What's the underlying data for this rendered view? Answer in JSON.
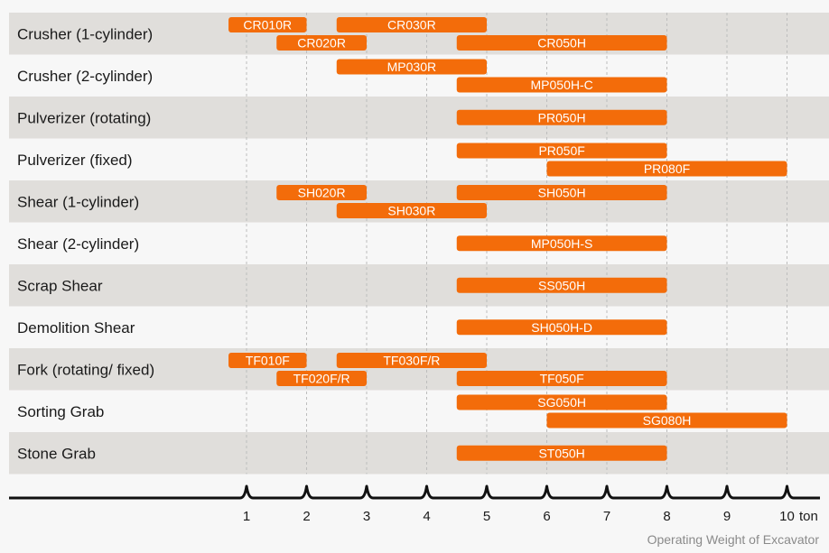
{
  "chart_data": {
    "type": "bar",
    "orientation": "horizontal-range",
    "categories": [
      "Crusher (1-cylinder)",
      "Crusher (2-cylinder)",
      "Pulverizer (rotating)",
      "Pulverizer (fixed)",
      "Shear (1-cylinder)",
      "Shear (2-cylinder)",
      "Scrap Shear",
      "Demolition Shear",
      "Fork (rotating/ fixed)",
      "Sorting Grab",
      "Stone Grab"
    ],
    "series": [
      {
        "category": 0,
        "lane": 0,
        "label": "CR010R",
        "start": 0.7,
        "end": 2.0
      },
      {
        "category": 0,
        "lane": 0,
        "label": "CR030R",
        "start": 2.5,
        "end": 5.0
      },
      {
        "category": 0,
        "lane": 1,
        "label": "CR020R",
        "start": 1.5,
        "end": 3.0
      },
      {
        "category": 0,
        "lane": 1,
        "label": "CR050H",
        "start": 4.5,
        "end": 8.0
      },
      {
        "category": 1,
        "lane": 0,
        "label": "MP030R",
        "start": 2.5,
        "end": 5.0
      },
      {
        "category": 1,
        "lane": 1,
        "label": "MP050H-C",
        "start": 4.5,
        "end": 8.0
      },
      {
        "category": 2,
        "lane": -1,
        "label": "PR050H",
        "start": 4.5,
        "end": 8.0
      },
      {
        "category": 3,
        "lane": 0,
        "label": "PR050F",
        "start": 4.5,
        "end": 8.0
      },
      {
        "category": 3,
        "lane": 1,
        "label": "PR080F",
        "start": 6.0,
        "end": 10.0
      },
      {
        "category": 4,
        "lane": 0,
        "label": "SH020R",
        "start": 1.5,
        "end": 3.0
      },
      {
        "category": 4,
        "lane": 0,
        "label": "SH050H",
        "start": 4.5,
        "end": 8.0
      },
      {
        "category": 4,
        "lane": 1,
        "label": "SH030R",
        "start": 2.5,
        "end": 5.0
      },
      {
        "category": 5,
        "lane": -1,
        "label": "MP050H-S",
        "start": 4.5,
        "end": 8.0
      },
      {
        "category": 6,
        "lane": -1,
        "label": "SS050H",
        "start": 4.5,
        "end": 8.0
      },
      {
        "category": 7,
        "lane": -1,
        "label": "SH050H-D",
        "start": 4.5,
        "end": 8.0
      },
      {
        "category": 8,
        "lane": 0,
        "label": "TF010F",
        "start": 0.7,
        "end": 2.0
      },
      {
        "category": 8,
        "lane": 0,
        "label": "TF030F/R",
        "start": 2.5,
        "end": 5.0
      },
      {
        "category": 8,
        "lane": 1,
        "label": "TF020F/R",
        "start": 1.5,
        "end": 3.0
      },
      {
        "category": 8,
        "lane": 1,
        "label": "TF050F",
        "start": 4.5,
        "end": 8.0
      },
      {
        "category": 9,
        "lane": 0,
        "label": "SG050H",
        "start": 4.5,
        "end": 8.0
      },
      {
        "category": 9,
        "lane": 1,
        "label": "SG080H",
        "start": 6.0,
        "end": 10.0
      },
      {
        "category": 10,
        "lane": -1,
        "label": "ST050H",
        "start": 4.5,
        "end": 8.0
      }
    ],
    "x_ticks": [
      "1",
      "2",
      "3",
      "4",
      "5",
      "6",
      "7",
      "8",
      "9",
      "10"
    ],
    "x_unit": "ton",
    "xlabel": "Operating Weight of Excavator",
    "xlim": [
      1,
      10
    ],
    "grid": "vertical-dashed",
    "colors": {
      "bar": "#f36c0a",
      "band_shaded": "#e0dedb",
      "band_plain": "#f7f7f7",
      "grid": "#bdbdbd",
      "axis": "#111111"
    }
  }
}
